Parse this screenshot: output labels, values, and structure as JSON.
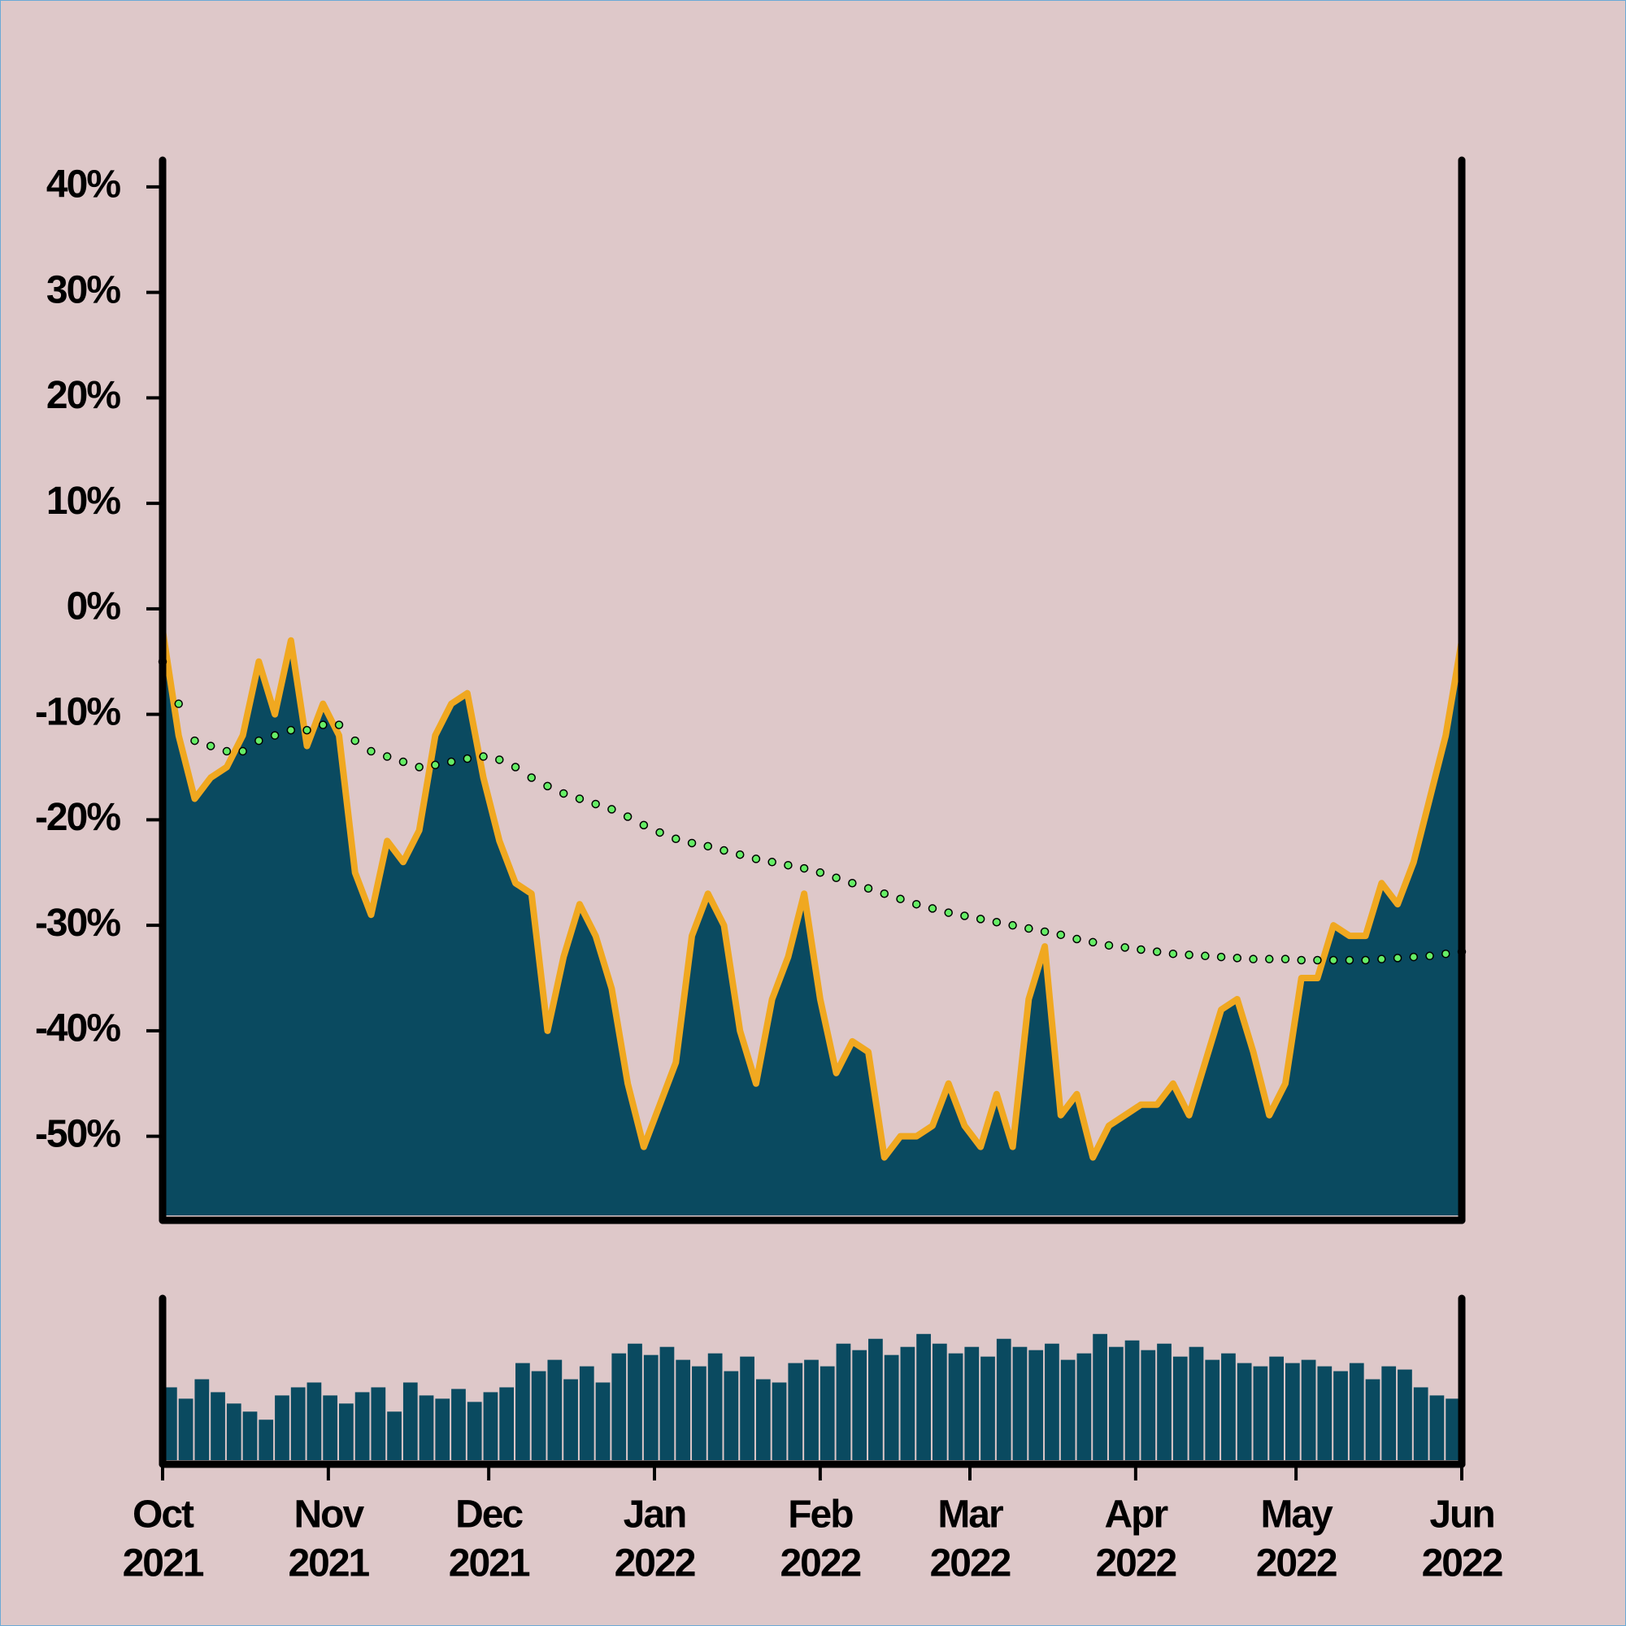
{
  "chart_data": [
    {
      "type": "area",
      "x": [
        0,
        3,
        6,
        9,
        12,
        15,
        18,
        21,
        24,
        27,
        30,
        33,
        36,
        39,
        42,
        45,
        48,
        51,
        54,
        57,
        60,
        63,
        66,
        69,
        72,
        75,
        78,
        81,
        84,
        87,
        90,
        93,
        96,
        99,
        102,
        105,
        108,
        111,
        114,
        117,
        120,
        123,
        126,
        129,
        132,
        135,
        138,
        141,
        144,
        147,
        150,
        153,
        156,
        159,
        162,
        165,
        168,
        171,
        174,
        177,
        180,
        183,
        186,
        189,
        192,
        195,
        198,
        201,
        204,
        207,
        210,
        213,
        216,
        219,
        222,
        225,
        228,
        231,
        234,
        237,
        240,
        243
      ],
      "xlim": [
        0,
        243
      ],
      "ylim": [
        -57.5,
        42.3
      ],
      "yticks": [
        {
          "value": 40,
          "label": "40%"
        },
        {
          "value": 30,
          "label": "30%"
        },
        {
          "value": 20,
          "label": "20%"
        },
        {
          "value": 10,
          "label": "10%"
        },
        {
          "value": 0,
          "label": "0%"
        },
        {
          "value": -10,
          "label": "-10%"
        },
        {
          "value": -20,
          "label": "-20%"
        },
        {
          "value": -30,
          "label": "-30%"
        },
        {
          "value": -40,
          "label": "-40%"
        },
        {
          "value": -50,
          "label": "-50%"
        }
      ],
      "series": [
        {
          "color": "#0a4a60",
          "line_color": "#f0a820",
          "values": [
            -2,
            -12,
            -18,
            -16,
            -15,
            -12,
            -5,
            -10,
            -3,
            -13,
            -9,
            -12,
            -25,
            -29,
            -22,
            -24,
            -21,
            -12,
            -9,
            -8,
            -16,
            -22,
            -26,
            -27,
            -40,
            -33,
            -28,
            -31,
            -36,
            -45,
            -51,
            -47,
            -43,
            -31,
            -27,
            -30,
            -40,
            -45,
            -37,
            -33,
            -27,
            -37,
            -44,
            -41,
            -42,
            -52,
            -50,
            -50,
            -49,
            -45,
            -49,
            -51,
            -46,
            -51,
            -37,
            -32,
            -48,
            -46,
            -52,
            -49,
            -48,
            -47,
            -47,
            -45,
            -48,
            -43,
            -38,
            -37,
            -42,
            -48,
            -45,
            -35,
            -35,
            -30,
            -31,
            -31,
            -26,
            -28,
            -24,
            -18,
            -12,
            -3
          ]
        },
        {
          "color": "#66ee66",
          "style": "dots",
          "values": [
            -5,
            -9,
            -12.5,
            -13,
            -13.5,
            -13.5,
            -12.5,
            -12,
            -11.5,
            -11.5,
            -11,
            -11,
            -12.5,
            -13.5,
            -14,
            -14.5,
            -15,
            -14.8,
            -14.5,
            -14.2,
            -14,
            -14.3,
            -15,
            -16,
            -16.8,
            -17.5,
            -18,
            -18.5,
            -19,
            -19.7,
            -20.5,
            -21.2,
            -21.8,
            -22.2,
            -22.5,
            -22.9,
            -23.3,
            -23.7,
            -24,
            -24.3,
            -24.6,
            -25,
            -25.5,
            -26,
            -26.5,
            -27,
            -27.5,
            -28,
            -28.4,
            -28.8,
            -29.1,
            -29.4,
            -29.7,
            -30,
            -30.3,
            -30.6,
            -30.9,
            -31.3,
            -31.6,
            -31.9,
            -32.1,
            -32.3,
            -32.5,
            -32.7,
            -32.8,
            -32.9,
            -33,
            -33.1,
            -33.2,
            -33.2,
            -33.2,
            -33.3,
            -33.3,
            -33.3,
            -33.3,
            -33.3,
            -33.2,
            -33.1,
            -33,
            -32.9,
            -32.7,
            -32.5
          ]
        }
      ]
    },
    {
      "type": "bar",
      "color": "#0a4a60",
      "ylim": [
        0,
        100
      ],
      "values": [
        45,
        38,
        50,
        42,
        35,
        30,
        25,
        40,
        45,
        48,
        40,
        35,
        42,
        45,
        30,
        48,
        40,
        38,
        44,
        36,
        42,
        45,
        60,
        55,
        62,
        50,
        58,
        48,
        66,
        72,
        65,
        70,
        62,
        58,
        66,
        55,
        64,
        50,
        48,
        60,
        62,
        58,
        72,
        68,
        75,
        65,
        70,
        78,
        72,
        66,
        70,
        64,
        75,
        70,
        68,
        72,
        62,
        66,
        78,
        70,
        74,
        68,
        72,
        64,
        70,
        62,
        66,
        60,
        58,
        64,
        60,
        62,
        58,
        55,
        60,
        50,
        58,
        56,
        45,
        40,
        38,
        44
      ],
      "xticks": [
        {
          "value": 0,
          "label": [
            "Oct",
            "2021"
          ]
        },
        {
          "value": 31,
          "label": [
            "Nov",
            "2021"
          ]
        },
        {
          "value": 61,
          "label": [
            "Dec",
            "2021"
          ]
        },
        {
          "value": 92,
          "label": [
            "Jan",
            "2022"
          ]
        },
        {
          "value": 123,
          "label": [
            "Feb",
            "2022"
          ]
        },
        {
          "value": 151,
          "label": [
            "Mar",
            "2022"
          ]
        },
        {
          "value": 182,
          "label": [
            "Apr",
            "2022"
          ]
        },
        {
          "value": 212,
          "label": [
            "May",
            "2022"
          ]
        },
        {
          "value": 243,
          "label": [
            "Jun",
            "2022"
          ]
        }
      ]
    }
  ]
}
